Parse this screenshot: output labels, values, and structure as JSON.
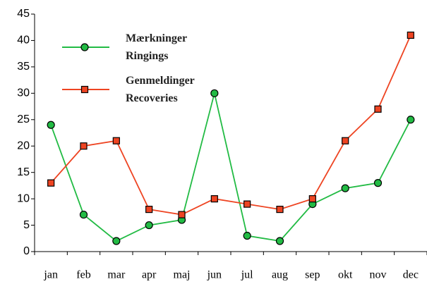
{
  "chart_data": {
    "type": "line",
    "categories": [
      "jan",
      "feb",
      "mar",
      "apr",
      "maj",
      "jun",
      "jul",
      "aug",
      "sep",
      "okt",
      "nov",
      "dec"
    ],
    "series": [
      {
        "name": "Mærkninger\nRingings",
        "color": "#22bb44",
        "marker": "circle",
        "values": [
          24,
          7,
          2,
          5,
          6,
          30,
          3,
          2,
          9,
          12,
          13,
          25
        ]
      },
      {
        "name": "Genmeldinger\nRecoveries",
        "color": "#ee4422",
        "marker": "square",
        "values": [
          13,
          20,
          21,
          8,
          7,
          10,
          9,
          8,
          10,
          21,
          27,
          41
        ]
      }
    ],
    "ylim": [
      0,
      45
    ],
    "yticks": [
      0,
      5,
      10,
      15,
      20,
      25,
      30,
      35,
      40,
      45
    ],
    "grid": false
  }
}
